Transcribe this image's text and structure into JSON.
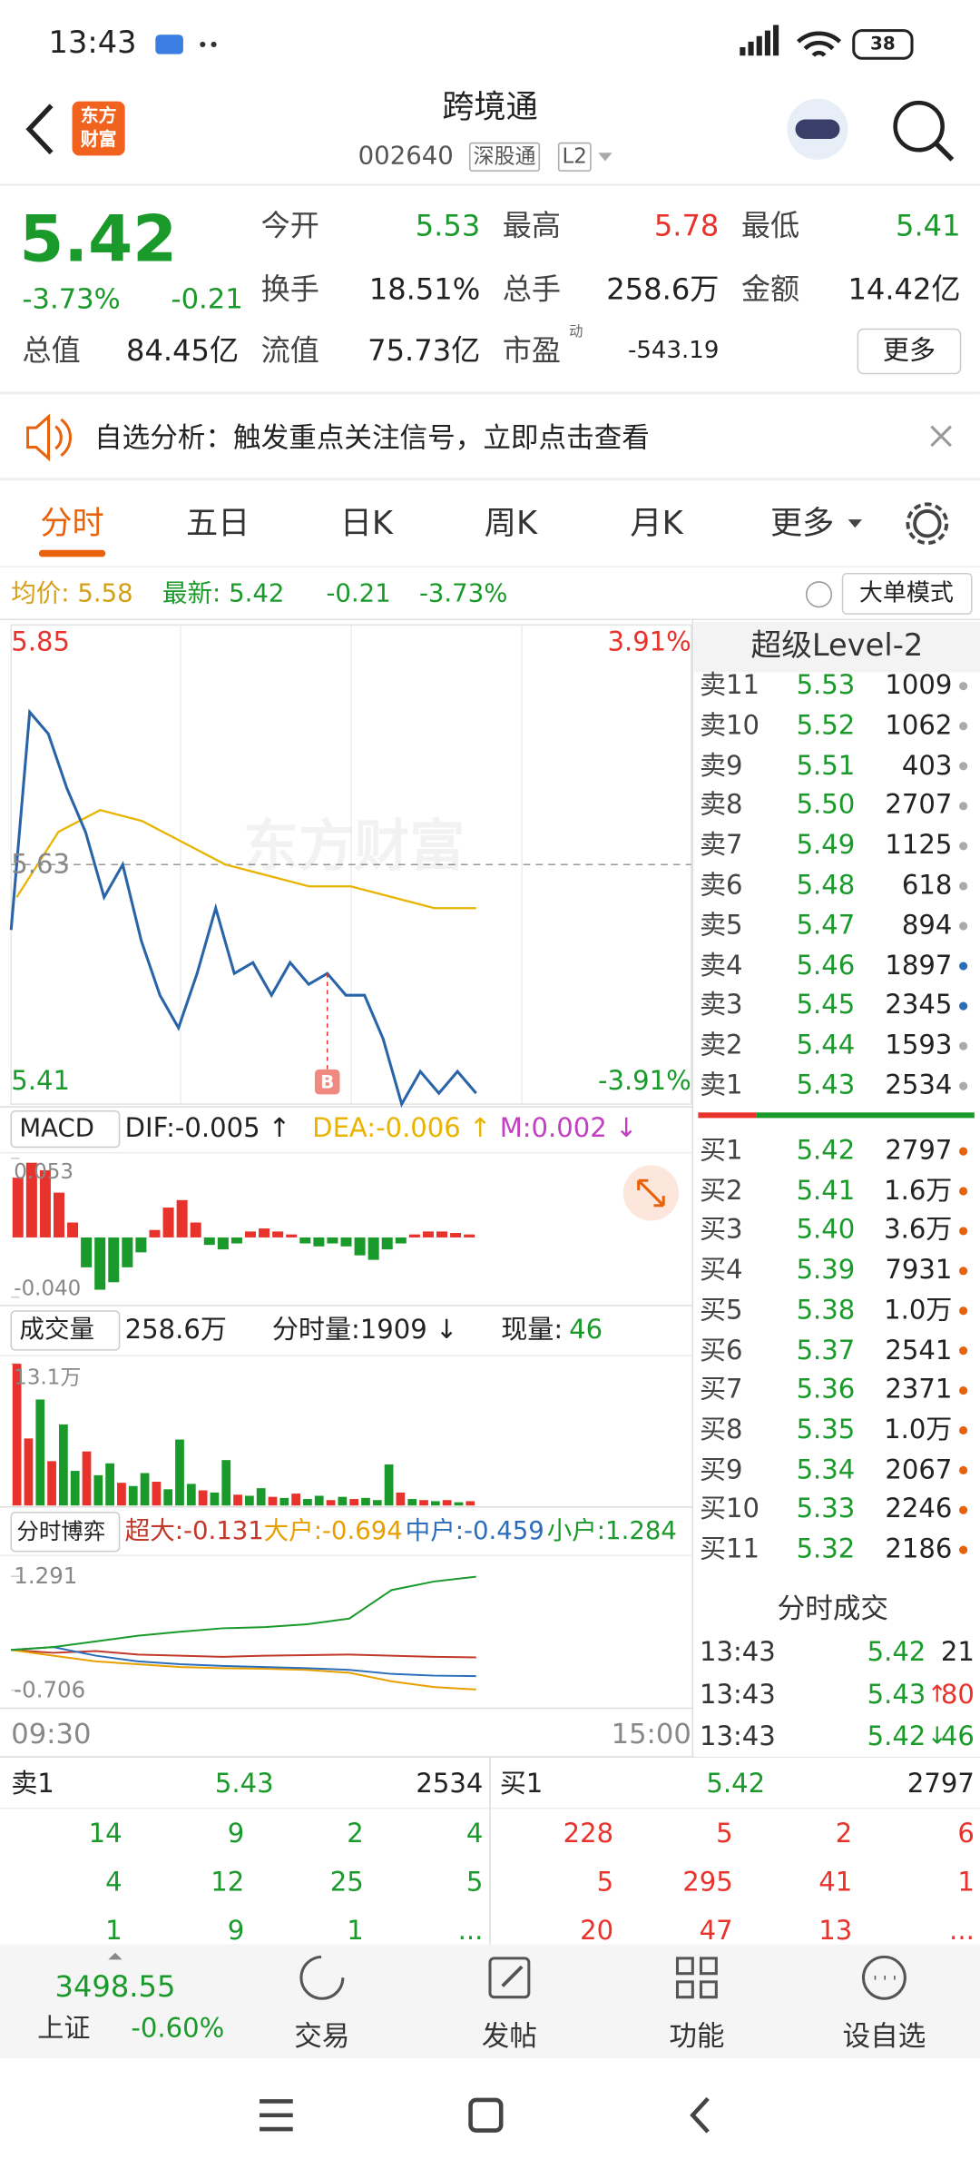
{
  "status": {
    "time": "13:43",
    "battery": "38"
  },
  "header": {
    "logo": [
      "东方",
      "财富"
    ],
    "title": "跨境通",
    "code": "002640",
    "tags": [
      "深股通",
      "L2"
    ]
  },
  "quote": {
    "price": "5.42",
    "percent": "-3.73%",
    "change": "-0.21",
    "color": "#1a9a2a",
    "stats": [
      {
        "label": "今开",
        "value": "5.53",
        "color": "#1a9a2a"
      },
      {
        "label": "最高",
        "value": "5.78",
        "color": "#e8332c"
      },
      {
        "label": "最低",
        "value": "5.41",
        "color": "#1a9a2a"
      },
      {
        "label": "换手",
        "value": "18.51%",
        "color": "#222222"
      },
      {
        "label": "总手",
        "value": "258.6万",
        "color": "#222222"
      },
      {
        "label": "金额",
        "value": "14.42亿",
        "color": "#222222"
      },
      {
        "label": "总值",
        "value": "84.45亿",
        "color": "#222222"
      },
      {
        "label": "流值",
        "value": "75.73亿",
        "color": "#222222"
      },
      {
        "label": "市盈",
        "value": "-543.19",
        "color": "#222222",
        "sup": "动"
      }
    ],
    "more": "更多"
  },
  "notice": "自选分析：触发重点关注信号，立即点击查看",
  "tabs": {
    "items": [
      "分时",
      "五日",
      "日K",
      "周K",
      "月K",
      "更多"
    ],
    "active": 0
  },
  "info": {
    "avg": "均价: 5.58",
    "latest": "最新: 5.42",
    "change": "-0.21",
    "percent": "-3.73%",
    "button": "大单模式"
  },
  "intraday": {
    "ylim": [
      5.41,
      5.85
    ],
    "yticks": [
      5.85,
      5.63,
      5.41
    ],
    "pct_labels": [
      "3.91%",
      "-3.91%"
    ],
    "xticks": [
      "09:30",
      "15:00"
    ],
    "watermark": "东方财富",
    "marker": "B",
    "price": [
      5.57,
      5.77,
      5.75,
      5.7,
      5.66,
      5.6,
      5.63,
      5.56,
      5.51,
      5.48,
      5.53,
      5.59,
      5.53,
      5.54,
      5.51,
      5.54,
      5.52,
      5.53,
      5.51,
      5.51,
      5.47,
      5.41,
      5.44,
      5.42,
      5.44,
      5.42
    ],
    "avg": [
      5.6,
      5.66,
      5.68,
      5.67,
      5.65,
      5.63,
      5.62,
      5.61,
      5.61,
      5.6,
      5.59,
      5.59
    ]
  },
  "macd": {
    "label": "MACD",
    "legend": [
      {
        "name": "DIF:-0.005 ↑",
        "color": "#222222"
      },
      {
        "name": "DEA:-0.006 ↑",
        "color": "#e8b400"
      },
      {
        "name": "M:0.002 ↓",
        "color": "#c040c0"
      }
    ],
    "ylim": [
      -0.04,
      0.053
    ],
    "yticks": [
      0.053,
      {
        "value": -0.04,
        "label": "-0.040"
      }
    ],
    "bars": [
      0.04,
      0.05,
      0.045,
      0.03,
      0.01,
      -0.02,
      -0.035,
      -0.03,
      -0.02,
      -0.01,
      0.005,
      0.02,
      0.025,
      0.01,
      -0.005,
      -0.008,
      -0.004,
      0.004,
      0.006,
      0.004,
      0.002,
      -0.004,
      -0.006,
      -0.004,
      -0.006,
      -0.012,
      -0.015,
      -0.008,
      -0.004,
      0.002,
      0.004,
      0.004,
      0.003,
      0.002
    ]
  },
  "volume": {
    "label": "成交量",
    "total": "258.6万",
    "tick": "分时量:1909 ↓",
    "now_label": "现量:",
    "now": "46",
    "ylim": [
      0,
      13.1
    ],
    "yticks": [
      {
        "value": 13.1,
        "label": "13.1万"
      }
    ],
    "values": [
      13.1,
      6.2,
      9.8,
      4.1,
      7.5,
      3.2,
      5.0,
      2.8,
      3.9,
      2.1,
      1.8,
      3.0,
      2.2,
      1.5,
      6.1,
      2.0,
      1.4,
      1.2,
      4.2,
      1.0,
      0.9,
      1.6,
      0.8,
      0.7,
      1.1,
      0.6,
      0.9,
      0.5,
      0.8,
      0.6,
      0.7,
      0.5,
      3.8,
      1.2,
      0.6,
      0.5,
      0.4,
      0.5,
      0.3,
      0.4
    ],
    "colors": [
      "#e8332c",
      "#e8332c",
      "#1a9a2a",
      "#e8332c",
      "#1a9a2a",
      "#1a9a2a",
      "#e8332c",
      "#1a9a2a",
      "#1a9a2a",
      "#e8332c",
      "#1a9a2a",
      "#1a9a2a",
      "#e8332c",
      "#1a9a2a",
      "#1a9a2a",
      "#1a9a2a",
      "#e8332c",
      "#1a9a2a",
      "#1a9a2a",
      "#e8332c",
      "#1a9a2a",
      "#1a9a2a",
      "#e8332c",
      "#1a9a2a",
      "#e8332c",
      "#1a9a2a",
      "#1a9a2a",
      "#e8332c",
      "#1a9a2a",
      "#e8332c",
      "#1a9a2a",
      "#1a9a2a",
      "#1a9a2a",
      "#e8332c",
      "#1a9a2a",
      "#e8332c",
      "#1a9a2a",
      "#e8332c",
      "#1a9a2a",
      "#e8332c"
    ]
  },
  "flow": {
    "label": "分时博弈",
    "ylim": [
      -0.706,
      1.291
    ],
    "yticks": [
      1.291,
      -0.706
    ],
    "series": [
      {
        "name": "超大:-0.131",
        "color": "#c0392b",
        "values": [
          0,
          -0.05,
          -0.02,
          -0.08,
          -0.1,
          -0.12,
          -0.1,
          -0.09,
          -0.08,
          -0.1,
          -0.12,
          -0.131
        ]
      },
      {
        "name": "大户:-0.694",
        "color": "#e8a000",
        "values": [
          0,
          -0.1,
          -0.2,
          -0.25,
          -0.3,
          -0.32,
          -0.33,
          -0.35,
          -0.4,
          -0.55,
          -0.65,
          -0.694
        ]
      },
      {
        "name": "中户:-0.459",
        "color": "#2a6ebb",
        "values": [
          0,
          0.05,
          -0.1,
          -0.2,
          -0.25,
          -0.28,
          -0.3,
          -0.32,
          -0.35,
          -0.42,
          -0.45,
          -0.459
        ]
      },
      {
        "name": "小户:1.284",
        "color": "#1a9a2a",
        "values": [
          0,
          0.05,
          0.15,
          0.25,
          0.32,
          0.38,
          0.4,
          0.45,
          0.55,
          1.05,
          1.2,
          1.284
        ]
      }
    ]
  },
  "book": {
    "title": "超级Level-2",
    "asks": [
      {
        "label": "卖11",
        "price": "5.53",
        "volume": "1009",
        "dot": "#aaaaaa"
      },
      {
        "label": "卖10",
        "price": "5.52",
        "volume": "1062",
        "dot": "#aaaaaa"
      },
      {
        "label": "卖9",
        "price": "5.51",
        "volume": "403",
        "dot": "#aaaaaa"
      },
      {
        "label": "卖8",
        "price": "5.50",
        "volume": "2707",
        "dot": "#aaaaaa"
      },
      {
        "label": "卖7",
        "price": "5.49",
        "volume": "1125",
        "dot": "#aaaaaa"
      },
      {
        "label": "卖6",
        "price": "5.48",
        "volume": "618",
        "dot": "#aaaaaa"
      },
      {
        "label": "卖5",
        "price": "5.47",
        "volume": "894",
        "dot": "#aaaaaa"
      },
      {
        "label": "卖4",
        "price": "5.46",
        "volume": "1897",
        "dot": "#2a6ebb"
      },
      {
        "label": "卖3",
        "price": "5.45",
        "volume": "2345",
        "dot": "#2a6ebb"
      },
      {
        "label": "卖2",
        "price": "5.44",
        "volume": "1593",
        "dot": "#aaaaaa"
      },
      {
        "label": "卖1",
        "price": "5.43",
        "volume": "2534",
        "dot": "#aaaaaa"
      }
    ],
    "bids": [
      {
        "label": "买1",
        "price": "5.42",
        "volume": "2797"
      },
      {
        "label": "买2",
        "price": "5.41",
        "volume": "1.6万"
      },
      {
        "label": "买3",
        "price": "5.40",
        "volume": "3.6万"
      },
      {
        "label": "买4",
        "price": "5.39",
        "volume": "7931"
      },
      {
        "label": "买5",
        "price": "5.38",
        "volume": "1.0万"
      },
      {
        "label": "买6",
        "price": "5.37",
        "volume": "2541"
      },
      {
        "label": "买7",
        "price": "5.36",
        "volume": "2371"
      },
      {
        "label": "买8",
        "price": "5.35",
        "volume": "1.0万"
      },
      {
        "label": "买9",
        "price": "5.34",
        "volume": "2067"
      },
      {
        "label": "买10",
        "price": "5.33",
        "volume": "2246"
      },
      {
        "label": "买11",
        "price": "5.32",
        "volume": "2186"
      }
    ],
    "bid_dot": "#e8620c",
    "trades_title": "分时成交",
    "trades": [
      {
        "time": "13:43",
        "price": "5.42",
        "volume": "21",
        "color": "#222222"
      },
      {
        "time": "13:43",
        "price": "5.43",
        "arrow": "↑",
        "volume": "80",
        "color": "#e8332c"
      },
      {
        "time": "13:43",
        "price": "5.42",
        "arrow": "↓",
        "volume": "46",
        "color": "#1a9a2a"
      }
    ]
  },
  "depth": {
    "ask": {
      "label": "卖1",
      "price": "5.43",
      "volume": "2534",
      "rows": [
        [
          14,
          9,
          2,
          4
        ],
        [
          4,
          12,
          25,
          5
        ],
        [
          1,
          9,
          1,
          "..."
        ]
      ]
    },
    "bid": {
      "label": "买1",
      "price": "5.42",
      "volume": "2797",
      "rows": [
        [
          228,
          5,
          2,
          6
        ],
        [
          5,
          295,
          41,
          1
        ],
        [
          20,
          47,
          13,
          "..."
        ]
      ]
    }
  },
  "nav": {
    "index": {
      "value": "3498.55",
      "name": "上证",
      "change": "-0.60%"
    },
    "items": [
      "交易",
      "发帖",
      "功能",
      "设自选"
    ]
  }
}
